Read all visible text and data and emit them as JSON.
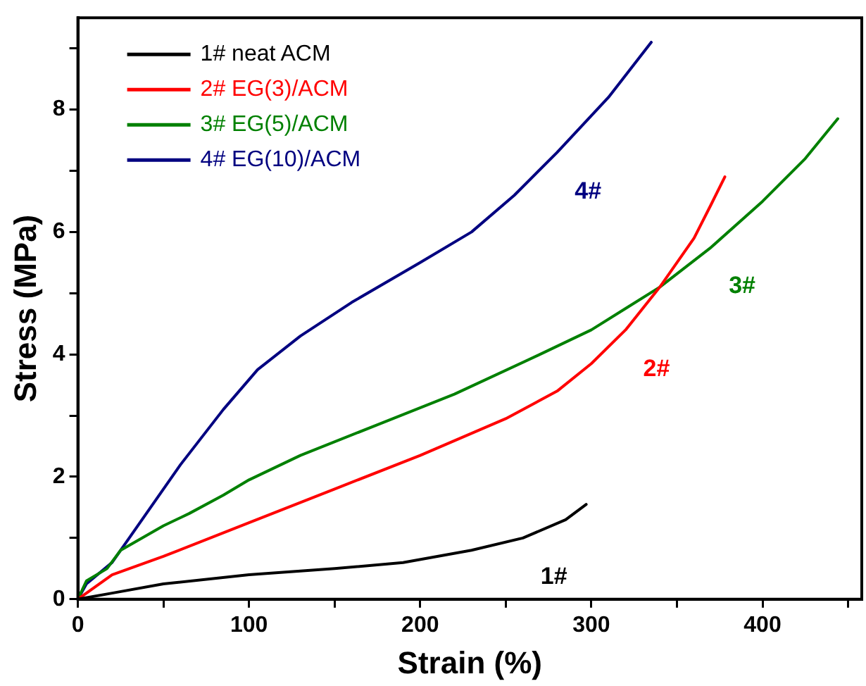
{
  "chart_data": {
    "type": "line",
    "xlabel": "Strain (%)",
    "ylabel": "Stress (MPa)",
    "xlim": [
      0,
      458
    ],
    "ylim": [
      0,
      9.5
    ],
    "xticks": [
      0,
      {
        "value": 50,
        "label": null
      },
      100,
      {
        "value": 150,
        "label": null
      },
      200,
      {
        "value": 250,
        "label": null
      },
      300,
      {
        "value": 350,
        "label": null
      },
      400,
      {
        "value": 450,
        "label": null
      }
    ],
    "yticks": [
      0,
      {
        "value": 1,
        "label": null
      },
      2,
      {
        "value": 3,
        "label": null
      },
      4,
      {
        "value": 5,
        "label": null
      },
      6,
      {
        "value": 7,
        "label": null
      },
      8,
      {
        "value": 9,
        "label": null
      }
    ],
    "grid": false,
    "legend": "top left",
    "marker": "none",
    "line_style": "solid",
    "series": [
      {
        "name": "1# neat ACM",
        "color": "#000000",
        "x": [
          0,
          20,
          50,
          100,
          150,
          190,
          230,
          260,
          285,
          297
        ],
        "values": [
          0,
          0.1,
          0.25,
          0.4,
          0.5,
          0.6,
          0.8,
          1.0,
          1.3,
          1.55
        ]
      },
      {
        "name": "2# EG(3)/ACM",
        "color": "#ff0000",
        "x": [
          0,
          20,
          50,
          100,
          150,
          200,
          250,
          280,
          300,
          320,
          340,
          360,
          370,
          378
        ],
        "values": [
          0,
          0.4,
          0.7,
          1.25,
          1.8,
          2.35,
          2.95,
          3.4,
          3.85,
          4.4,
          5.1,
          5.9,
          6.45,
          6.9
        ]
      },
      {
        "name": "3# EG(5)/ACM",
        "color": "#008000",
        "x": [
          0,
          5,
          17,
          25,
          50,
          65,
          85,
          100,
          130,
          175,
          220,
          270,
          300,
          320,
          340,
          370,
          400,
          425,
          444
        ],
        "values": [
          0,
          0.3,
          0.5,
          0.8,
          1.2,
          1.4,
          1.7,
          1.95,
          2.35,
          2.85,
          3.35,
          4.0,
          4.4,
          4.75,
          5.1,
          5.75,
          6.5,
          7.2,
          7.85
        ]
      },
      {
        "name": "4# EG(10)/ACM",
        "color": "#000080",
        "x": [
          0,
          5,
          20,
          40,
          60,
          85,
          105,
          130,
          160,
          200,
          230,
          255,
          280,
          310,
          335
        ],
        "values": [
          0,
          0.25,
          0.6,
          1.4,
          2.2,
          3.1,
          3.75,
          4.3,
          4.85,
          5.5,
          6.0,
          6.6,
          7.3,
          8.2,
          9.1
        ]
      }
    ],
    "annotations": [
      "1#",
      "2#",
      "3#",
      "4#"
    ]
  }
}
